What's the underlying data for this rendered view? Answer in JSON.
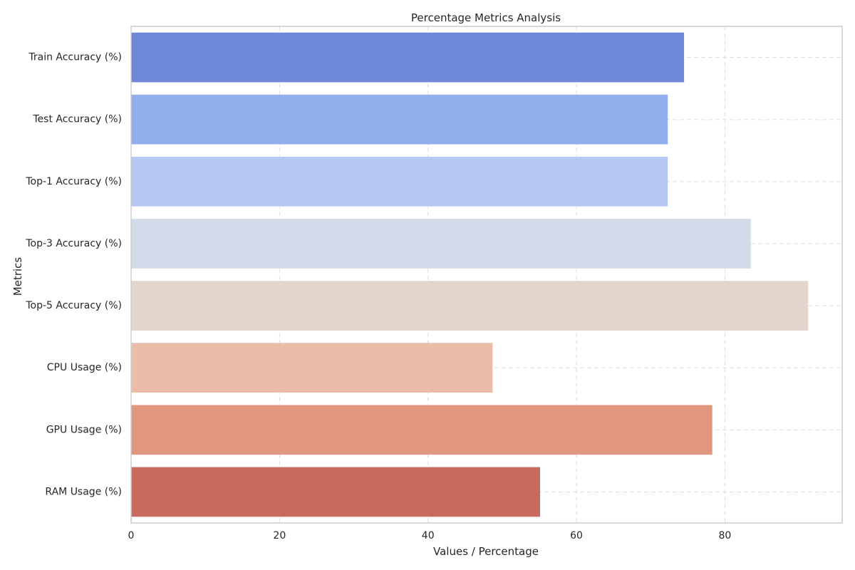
{
  "chart_data": {
    "type": "bar",
    "orientation": "horizontal",
    "title": "Percentage Metrics Analysis",
    "xlabel": "Values / Percentage",
    "ylabel": "Metrics",
    "xlim": [
      0,
      95.8
    ],
    "xticks": [
      0,
      20,
      40,
      60,
      80
    ],
    "grid": true,
    "categories": [
      "Train Accuracy (%)",
      "Test Accuracy (%)",
      "Top-1 Accuracy (%)",
      "Top-3 Accuracy (%)",
      "Top-5 Accuracy (%)",
      "CPU Usage (%)",
      "GPU Usage (%)",
      "RAM Usage (%)"
    ],
    "values": [
      74.5,
      72.3,
      72.3,
      83.5,
      91.2,
      48.7,
      78.3,
      55.1
    ],
    "colors": [
      "#6f87d8",
      "#92aeed",
      "#b5c8f3",
      "#d1dbe9",
      "#e4d5cc",
      "#ebbca7",
      "#e19680",
      "#c86a5d"
    ]
  }
}
